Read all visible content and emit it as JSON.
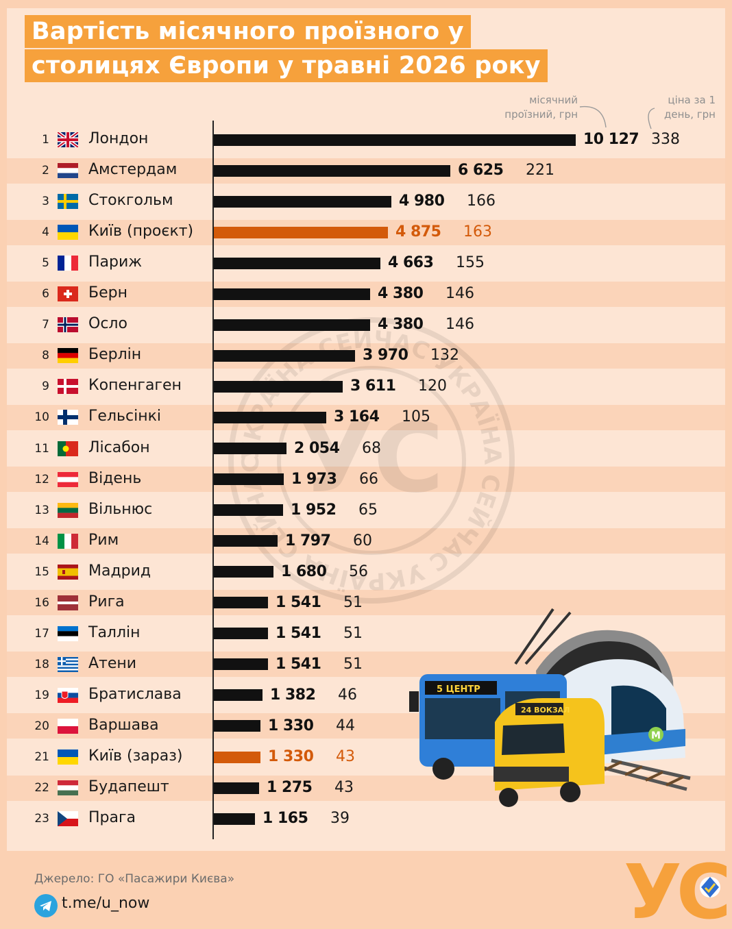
{
  "title": {
    "line1": "Вартість місячного проїзного у",
    "line2": "столицях Європи у травні 2026 року"
  },
  "headers": {
    "monthly_line1": "місячний",
    "monthly_line2": "проїзний, грн",
    "daily_line1": "ціна за 1",
    "daily_line2": "день, грн"
  },
  "colors": {
    "accent": "#f6a13c",
    "highlight": "#d35a0a",
    "bar": "#111111",
    "background": "#fde5d4"
  },
  "chart_data": {
    "type": "bar",
    "orientation": "horizontal",
    "title": "Вартість місячного проїзного у столицях Європи у травні 2026 року",
    "xlim": [
      0,
      10127
    ],
    "grid": false,
    "rows": [
      {
        "rank": "1",
        "flag": "gb",
        "city": "Лондон",
        "monthly": 10127,
        "monthly_label": "10 127",
        "daily": "338",
        "highlight": false
      },
      {
        "rank": "2",
        "flag": "nl",
        "city": "Амстердам",
        "monthly": 6625,
        "monthly_label": "6 625",
        "daily": "221",
        "highlight": false
      },
      {
        "rank": "3",
        "flag": "se",
        "city": "Стокгольм",
        "monthly": 4980,
        "monthly_label": "4 980",
        "daily": "166",
        "highlight": false
      },
      {
        "rank": "4",
        "flag": "ua",
        "city": "Київ (проєкт)",
        "monthly": 4875,
        "monthly_label": "4 875",
        "daily": "163",
        "highlight": true
      },
      {
        "rank": "5",
        "flag": "fr",
        "city": "Париж",
        "monthly": 4663,
        "monthly_label": "4 663",
        "daily": "155",
        "highlight": false
      },
      {
        "rank": "6",
        "flag": "ch",
        "city": "Берн",
        "monthly": 4380,
        "monthly_label": "4 380",
        "daily": "146",
        "highlight": false
      },
      {
        "rank": "7",
        "flag": "no",
        "city": "Осло",
        "monthly": 4380,
        "monthly_label": "4 380",
        "daily": "146",
        "highlight": false
      },
      {
        "rank": "8",
        "flag": "de",
        "city": "Берлін",
        "monthly": 3970,
        "monthly_label": "3 970",
        "daily": "132",
        "highlight": false
      },
      {
        "rank": "9",
        "flag": "dk",
        "city": "Копенгаген",
        "monthly": 3611,
        "monthly_label": "3 611",
        "daily": "120",
        "highlight": false
      },
      {
        "rank": "10",
        "flag": "fi",
        "city": "Гельсінкі",
        "monthly": 3164,
        "monthly_label": "3 164",
        "daily": "105",
        "highlight": false
      },
      {
        "rank": "11",
        "flag": "pt",
        "city": "Лісабон",
        "monthly": 2054,
        "monthly_label": "2 054",
        "daily": "68",
        "highlight": false
      },
      {
        "rank": "12",
        "flag": "at",
        "city": "Відень",
        "monthly": 1973,
        "monthly_label": "1 973",
        "daily": "66",
        "highlight": false
      },
      {
        "rank": "13",
        "flag": "lt",
        "city": "Вільнюс",
        "monthly": 1952,
        "monthly_label": "1 952",
        "daily": "65",
        "highlight": false
      },
      {
        "rank": "14",
        "flag": "it",
        "city": "Рим",
        "monthly": 1797,
        "monthly_label": "1 797",
        "daily": "60",
        "highlight": false
      },
      {
        "rank": "15",
        "flag": "es",
        "city": "Мадрид",
        "monthly": 1680,
        "monthly_label": "1 680",
        "daily": "56",
        "highlight": false
      },
      {
        "rank": "16",
        "flag": "lv",
        "city": "Рига",
        "monthly": 1541,
        "monthly_label": "1 541",
        "daily": "51",
        "highlight": false
      },
      {
        "rank": "17",
        "flag": "ee",
        "city": "Таллін",
        "monthly": 1541,
        "monthly_label": "1 541",
        "daily": "51",
        "highlight": false
      },
      {
        "rank": "18",
        "flag": "gr",
        "city": "Атени",
        "monthly": 1541,
        "monthly_label": "1 541",
        "daily": "51",
        "highlight": false
      },
      {
        "rank": "19",
        "flag": "sk",
        "city": "Братислава",
        "monthly": 1382,
        "monthly_label": "1 382",
        "daily": "46",
        "highlight": false
      },
      {
        "rank": "20",
        "flag": "pl",
        "city": "Варшава",
        "monthly": 1330,
        "monthly_label": "1 330",
        "daily": "44",
        "highlight": false
      },
      {
        "rank": "21",
        "flag": "ua",
        "city": "Київ (зараз)",
        "monthly": 1330,
        "monthly_label": "1 330",
        "daily": "43",
        "highlight": true
      },
      {
        "rank": "22",
        "flag": "hu",
        "city": "Будапешт",
        "monthly": 1275,
        "monthly_label": "1 275",
        "daily": "43",
        "highlight": false
      },
      {
        "rank": "23",
        "flag": "cz",
        "city": "Прага",
        "monthly": 1165,
        "monthly_label": "1 165",
        "daily": "39",
        "highlight": false
      }
    ]
  },
  "illustration": {
    "trolleybus_sign": "5 ЦЕНТР",
    "minibus_sign": "24 ВОКЗАЛ",
    "metro_logo": "М"
  },
  "watermark": {
    "ring_text": "УКРАЇНА СЕЙЧАС УКРАЇНА СЕЙЧАС УКРАЇНА СЕЙЧАС ",
    "letters": "УС"
  },
  "footer": {
    "source": "Джерело: ГО «Пасажири Києва»",
    "telegram": "t.me/u_now",
    "logo_text": "УС"
  }
}
